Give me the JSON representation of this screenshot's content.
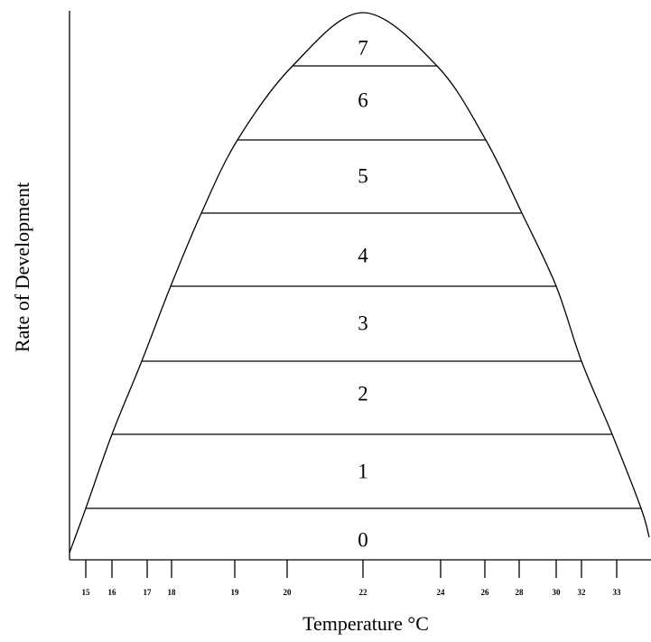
{
  "y_axis_label": "Rate of Development",
  "x_axis_label": "Temperature °C",
  "x_ticks": [
    "15",
    "16",
    "17",
    "18",
    "19",
    "20",
    "22",
    "24",
    "26",
    "28",
    "30",
    "32",
    "33"
  ],
  "bands": [
    "0",
    "1",
    "2",
    "3",
    "4",
    "5",
    "6",
    "7"
  ]
}
